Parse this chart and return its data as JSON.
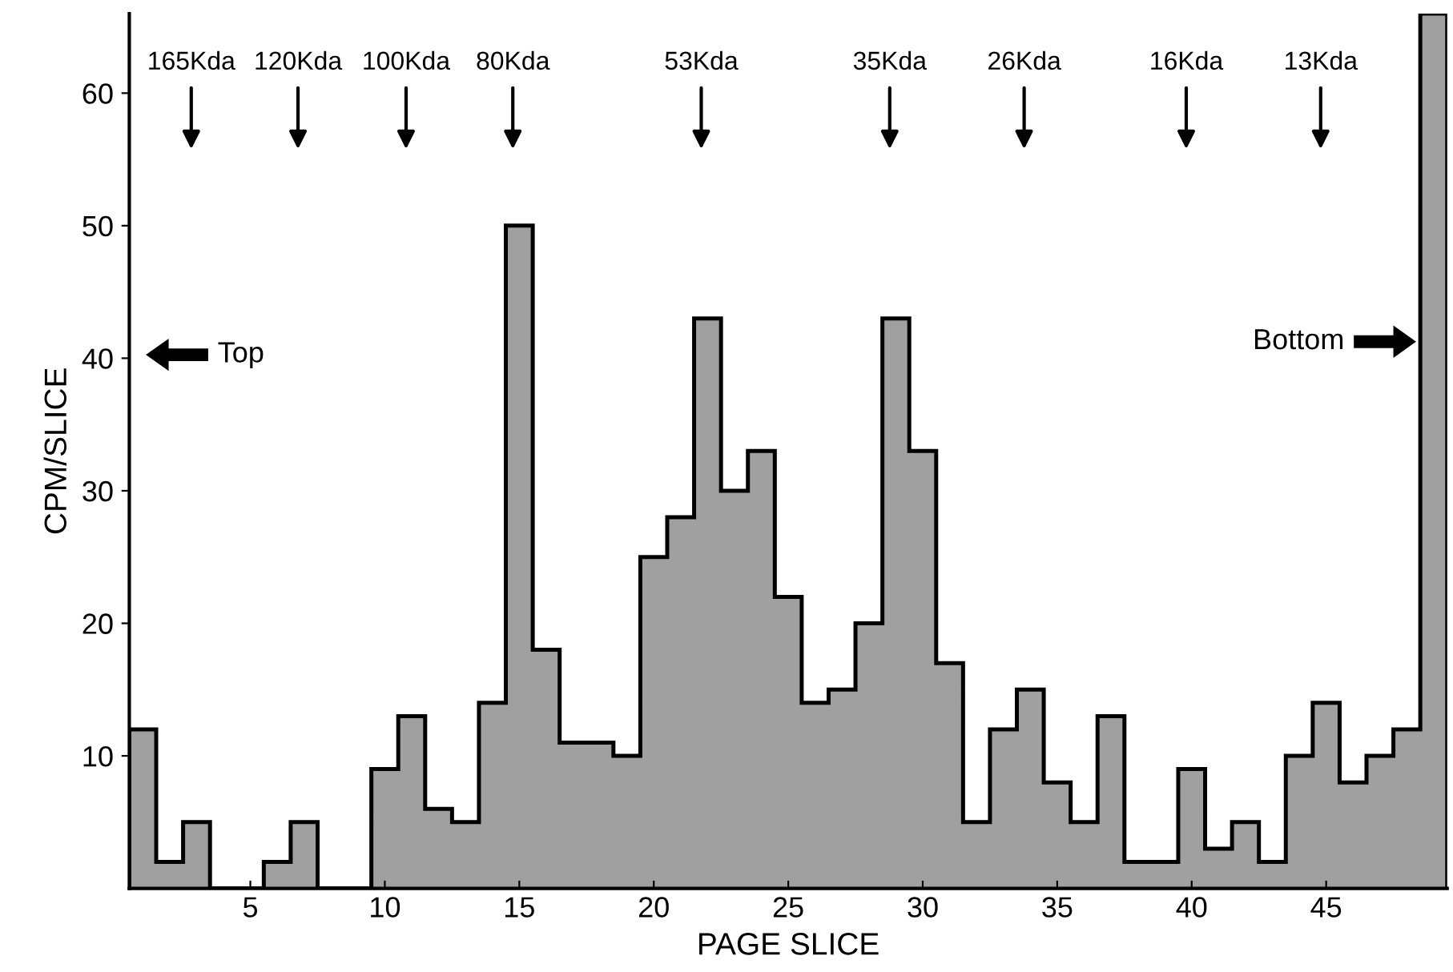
{
  "chart_data": {
    "type": "histogram",
    "xlabel": "PAGE SLICE",
    "ylabel": "CPM/SLICE",
    "bins": [
      0.5,
      1.5,
      2.5,
      3.5,
      4.5,
      5.5,
      6.5,
      7.5,
      8.5,
      9.5,
      10.5,
      11.5,
      12.5,
      13.5,
      14.5,
      15.5,
      16.5,
      17.5,
      18.5,
      19.5,
      20.5,
      21.5,
      22.5,
      23.5,
      24.5,
      25.5,
      26.5,
      27.5,
      28.5,
      29.5,
      30.5,
      31.5,
      32.5,
      33.5,
      34.5,
      35.5,
      36.5,
      37.5,
      38.5,
      39.5,
      40.5,
      41.5,
      42.5,
      43.5,
      44.5,
      45.5,
      46.5,
      47.5,
      48.5,
      49.5
    ],
    "values": [
      12,
      2,
      5,
      0,
      0,
      2,
      5,
      0,
      0,
      9,
      13,
      6,
      5,
      14,
      50,
      18,
      11,
      11,
      10,
      25,
      28,
      43,
      30,
      33,
      22,
      14,
      15,
      20,
      43,
      33,
      17,
      5,
      12,
      15,
      8,
      5,
      13,
      2,
      2,
      9,
      3,
      5,
      2,
      10,
      14,
      8,
      10,
      12,
      66
    ],
    "color": "#a0a0a0",
    "xlim": [
      0.5,
      49.5
    ],
    "xticks": [
      5,
      10,
      15,
      20,
      25,
      30,
      35,
      40,
      45
    ],
    "ylim": [
      0,
      66
    ],
    "yticks": [
      10,
      20,
      30,
      40,
      50,
      60
    ],
    "grid": false,
    "annotations": [
      "165Kda",
      "120Kda",
      "100Kda",
      "80Kda",
      "53Kda",
      "35Kda",
      "26Kda",
      "16Kda",
      "13Kda",
      "Top",
      "Bottom"
    ]
  }
}
